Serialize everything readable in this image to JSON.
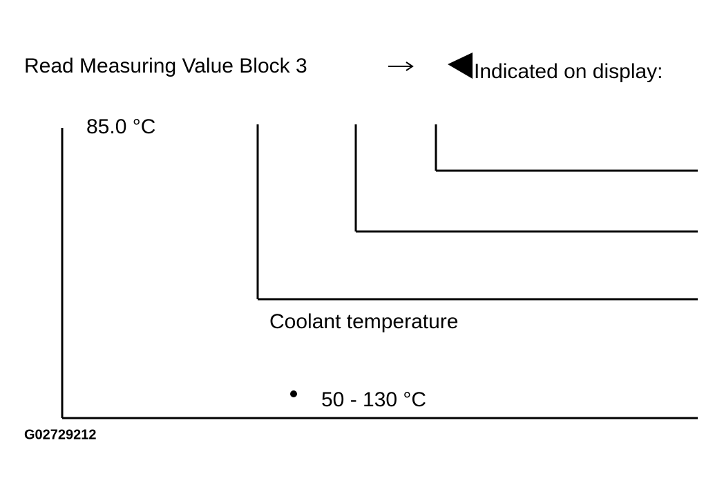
{
  "header": {
    "title": "Read Measuring Value Block 3",
    "display_label": "Indicated on display:"
  },
  "display": {
    "value": "85.0 °C"
  },
  "field": {
    "name": "Coolant temperature",
    "range": "50 - 130 °C"
  },
  "figure_id": "G02729212"
}
